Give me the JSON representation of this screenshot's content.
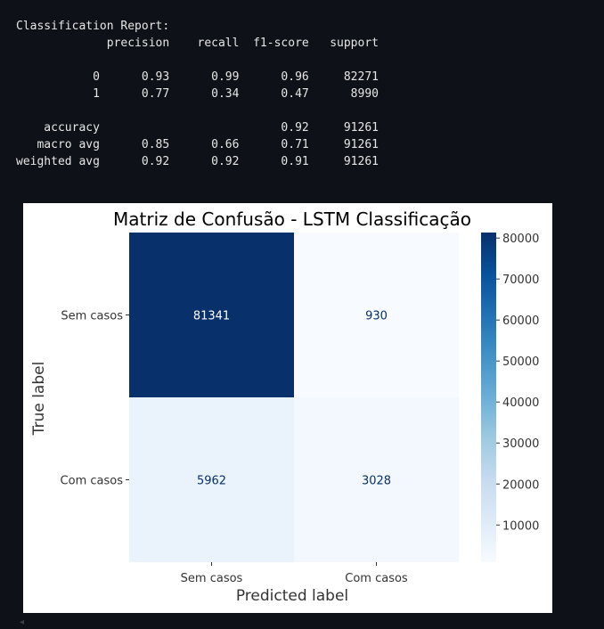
{
  "report": {
    "title": "Classification Report:",
    "header": [
      "precision",
      "recall",
      "f1-score",
      "support"
    ],
    "rows": [
      {
        "label": "0",
        "values": [
          "0.93",
          "0.99",
          "0.96",
          "82271"
        ]
      },
      {
        "label": "1",
        "values": [
          "0.77",
          "0.34",
          "0.47",
          "8990"
        ]
      },
      null,
      {
        "label": "accuracy",
        "values": [
          "",
          "",
          "0.92",
          "91261"
        ]
      },
      {
        "label": "macro avg",
        "values": [
          "0.85",
          "0.66",
          "0.71",
          "91261"
        ]
      },
      {
        "label": "weighted avg",
        "values": [
          "0.92",
          "0.92",
          "0.91",
          "91261"
        ]
      }
    ]
  },
  "chart_data": {
    "type": "heatmap",
    "title": "Matriz de Confusão - LSTM Classificação",
    "xlabel": "Predicted label",
    "ylabel": "True label",
    "x_categories": [
      "Sem casos",
      "Com casos"
    ],
    "y_categories": [
      "Sem casos",
      "Com casos"
    ],
    "values": [
      [
        81341,
        930
      ],
      [
        5962,
        3028
      ]
    ],
    "colormap": "Blues",
    "colorbar": {
      "ticks": [
        10000,
        20000,
        30000,
        40000,
        50000,
        60000,
        70000,
        80000
      ],
      "min": 930,
      "max": 81341
    }
  },
  "scroll_arrow": "◂"
}
